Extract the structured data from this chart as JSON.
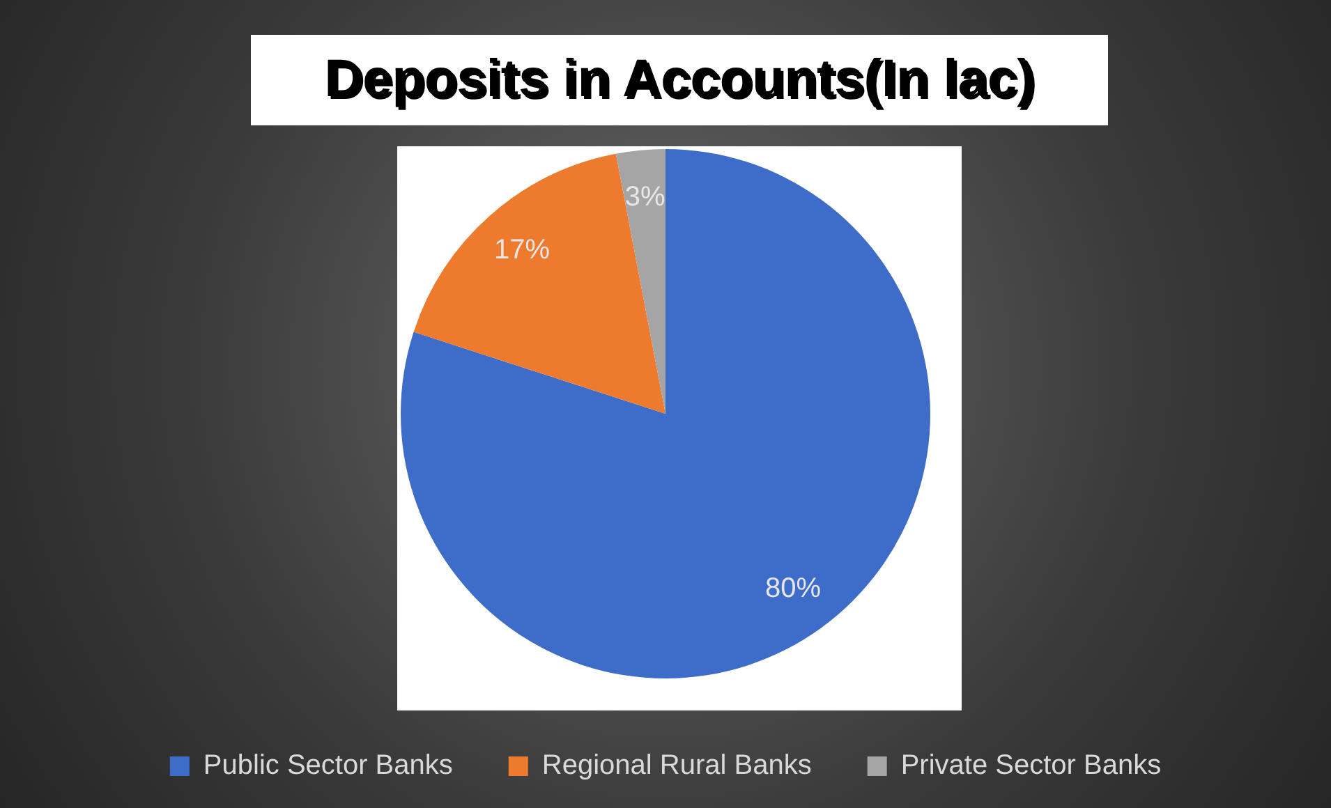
{
  "chart_data": {
    "type": "pie",
    "title": "Deposits in Accounts(In lac)",
    "categories": [
      "Public Sector Banks",
      "Regional Rural Banks",
      "Private Sector Banks"
    ],
    "values": [
      80,
      17,
      3
    ],
    "colors": [
      "#3d6cc9",
      "#ee7a2e",
      "#a5a5a5"
    ],
    "value_labels": [
      "80%",
      "17%",
      "3%"
    ],
    "legend": "bottom"
  }
}
